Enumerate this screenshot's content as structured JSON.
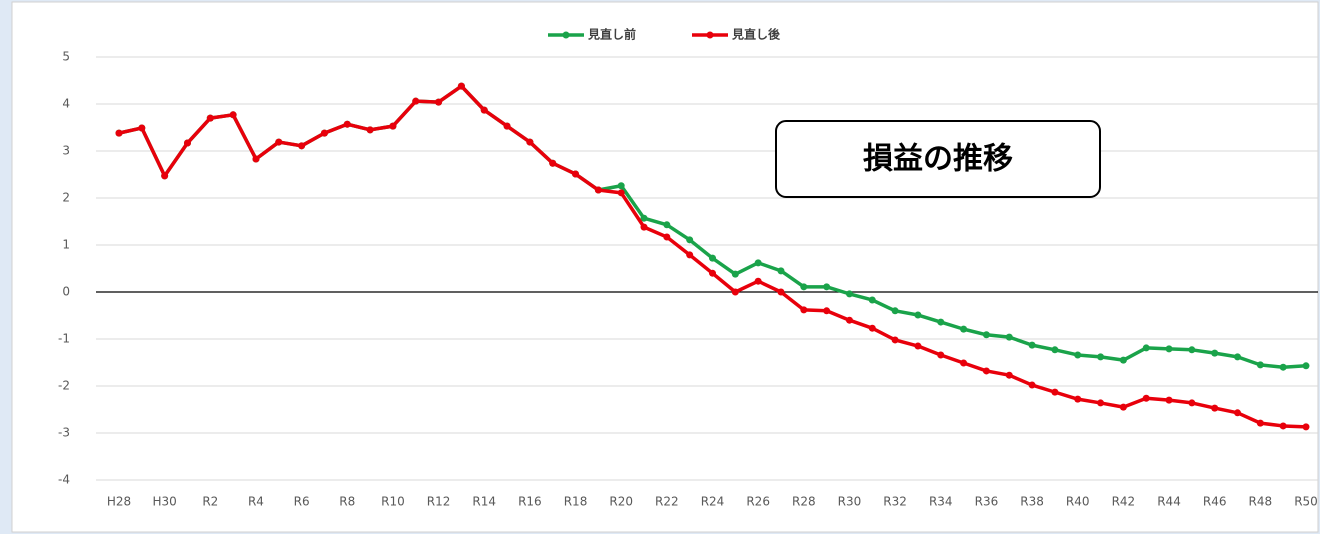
{
  "chart_data": {
    "type": "line",
    "annotation": "損益の推移",
    "categories": [
      "H28",
      null,
      "H30",
      null,
      "R2",
      null,
      "R4",
      null,
      "R6",
      null,
      "R8",
      null,
      "R10",
      null,
      "R12",
      null,
      "R14",
      null,
      "R16",
      null,
      "R18",
      null,
      "R20",
      null,
      "R22",
      null,
      "R24",
      null,
      "R26",
      null,
      "R28",
      null,
      "R30",
      null,
      "R32",
      null,
      "R34",
      null,
      "R36",
      null,
      "R38",
      null,
      "R40",
      null,
      "R42",
      null,
      "R44",
      null,
      "R46",
      null,
      "R48",
      null,
      "R50"
    ],
    "series": [
      {
        "name": "見直し前",
        "color": "#1aa34a",
        "values": [
          3.38,
          3.49,
          2.47,
          3.17,
          3.7,
          3.77,
          2.83,
          3.19,
          3.11,
          3.38,
          3.57,
          3.45,
          3.53,
          4.06,
          4.04,
          4.38,
          3.87,
          3.53,
          3.19,
          2.74,
          2.51,
          2.17,
          2.26,
          1.57,
          1.43,
          1.11,
          0.72,
          0.38,
          0.62,
          0.45,
          0.11,
          0.11,
          -0.04,
          -0.17,
          -0.4,
          -0.49,
          -0.64,
          -0.79,
          -0.91,
          -0.96,
          -1.13,
          -1.23,
          -1.34,
          -1.38,
          -1.45,
          -1.19,
          -1.21,
          -1.23,
          -1.3,
          -1.38,
          -1.55,
          -1.6,
          -1.57
        ]
      },
      {
        "name": "見直し後",
        "color": "#e8000b",
        "values": [
          3.38,
          3.49,
          2.47,
          3.17,
          3.7,
          3.77,
          2.83,
          3.19,
          3.11,
          3.38,
          3.57,
          3.45,
          3.53,
          4.06,
          4.04,
          4.38,
          3.87,
          3.53,
          3.19,
          2.74,
          2.51,
          2.17,
          2.11,
          1.38,
          1.17,
          0.79,
          0.4,
          0.0,
          0.23,
          0.0,
          -0.38,
          -0.4,
          -0.6,
          -0.77,
          -1.02,
          -1.15,
          -1.34,
          -1.51,
          -1.68,
          -1.77,
          -1.98,
          -2.13,
          -2.28,
          -2.36,
          -2.45,
          -2.26,
          -2.3,
          -2.36,
          -2.47,
          -2.57,
          -2.79,
          -2.85,
          -2.87
        ]
      }
    ],
    "ylim": [
      -4,
      5
    ],
    "yticks": [
      -4,
      -3,
      -2,
      -1,
      0,
      1,
      2,
      3,
      4,
      5
    ],
    "grid": true,
    "legend": "top"
  }
}
